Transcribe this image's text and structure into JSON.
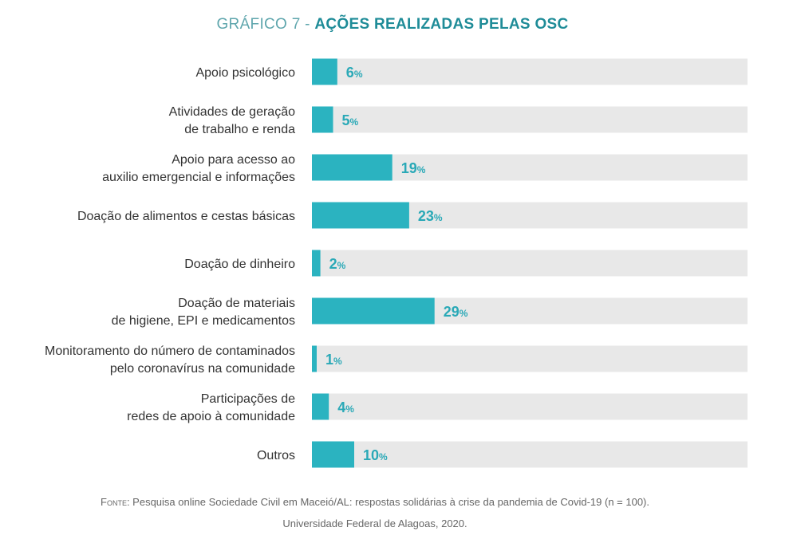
{
  "title": {
    "prefix": "GRÁFICO 7 - ",
    "main": "AÇÕES REALIZADAS PELAS OSC"
  },
  "chart_data": {
    "type": "bar",
    "orientation": "horizontal",
    "categories": [
      [
        "Apoio psicológico"
      ],
      [
        "Atividades de geração",
        "de trabalho e renda"
      ],
      [
        "Apoio para acesso ao",
        "auxilio emergencial e informações"
      ],
      [
        "Doação de alimentos e cestas básicas"
      ],
      [
        "Doação de dinheiro"
      ],
      [
        "Doação de materiais",
        "de higiene, EPI e medicamentos"
      ],
      [
        "Monitoramento do número de contaminados",
        "pelo coronavírus na comunidade"
      ],
      [
        "Participações de",
        "redes de apoio à comunidade"
      ],
      [
        "Outros"
      ]
    ],
    "values": [
      6,
      5,
      19,
      23,
      2,
      29,
      1,
      4,
      10
    ],
    "value_suffix": "%",
    "xlim": [
      0,
      100
    ],
    "colors": {
      "bar": "#2bb3c0",
      "track": "#e8e8e8",
      "value_text": "#2aa9b7"
    }
  },
  "source": {
    "prefix": "Fonte:",
    "line1": " Pesquisa online Sociedade Civil em Maceió/AL: respostas solidárias à crise da pandemia de Covid-19 (n = 100).",
    "line2": "Universidade Federal de Alagoas, 2020."
  }
}
